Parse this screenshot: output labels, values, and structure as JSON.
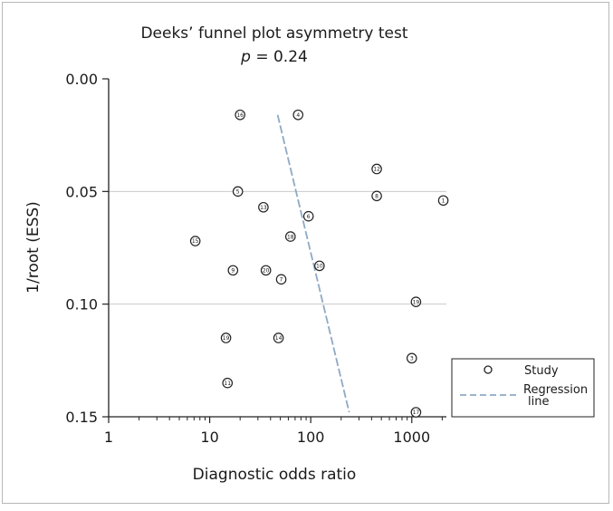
{
  "chart_data": {
    "type": "scatter",
    "title": "Deeks’ funnel plot asymmetry test",
    "subtitle_var": "p",
    "subtitle_rest": " = 0.24",
    "xlabel": "Diagnostic odds ratio",
    "ylabel": "1/root (ESS)",
    "x_scale": "log",
    "x_ticks": [
      {
        "value": 1,
        "label": "1"
      },
      {
        "value": 10,
        "label": "10"
      },
      {
        "value": 100,
        "label": "100"
      },
      {
        "value": 1000,
        "label": "1000"
      }
    ],
    "xlim": [
      1,
      2200
    ],
    "y_ticks": [
      {
        "value": 0.0,
        "label": "0.00"
      },
      {
        "value": 0.05,
        "label": "0.05"
      },
      {
        "value": 0.1,
        "label": "0.10"
      },
      {
        "value": 0.15,
        "label": "0.15"
      }
    ],
    "ylim": [
      0,
      0.15
    ],
    "y_inverted": true,
    "grid": "horizontal",
    "points": [
      {
        "label": "1",
        "x": 2050,
        "y": 0.054
      },
      {
        "label": "3",
        "x": 1000,
        "y": 0.124
      },
      {
        "label": "4",
        "x": 75,
        "y": 0.016
      },
      {
        "label": "5",
        "x": 19,
        "y": 0.05
      },
      {
        "label": "6",
        "x": 95,
        "y": 0.061
      },
      {
        "label": "7",
        "x": 51,
        "y": 0.089
      },
      {
        "label": "8",
        "x": 450,
        "y": 0.052
      },
      {
        "label": "9",
        "x": 17,
        "y": 0.085
      },
      {
        "label": "10",
        "x": 122,
        "y": 0.083
      },
      {
        "label": "11",
        "x": 15,
        "y": 0.135
      },
      {
        "label": "12",
        "x": 450,
        "y": 0.04
      },
      {
        "label": "13",
        "x": 34,
        "y": 0.057
      },
      {
        "label": "14",
        "x": 48,
        "y": 0.115
      },
      {
        "label": "15",
        "x": 7.2,
        "y": 0.072
      },
      {
        "label": "16",
        "x": 20,
        "y": 0.016
      },
      {
        "label": "17",
        "x": 1100,
        "y": 0.148
      },
      {
        "label": "18",
        "x": 63,
        "y": 0.07
      },
      {
        "label": "19",
        "x": 1100,
        "y": 0.099
      },
      {
        "label": "19",
        "x": 14.5,
        "y": 0.115
      },
      {
        "label": "20",
        "x": 36,
        "y": 0.085
      }
    ],
    "regression_line": {
      "x": [
        47,
        240
      ],
      "y": [
        0.016,
        0.148
      ]
    },
    "legend": {
      "position": "right",
      "entries": [
        {
          "label": "Study",
          "marker": "circle"
        },
        {
          "label": "Regression line",
          "marker": "dashed-line"
        }
      ]
    },
    "colors": {
      "regression": "#8fa9c4",
      "marker": "#222222",
      "grid": "#c9c9c9",
      "axis": "#222222"
    }
  }
}
